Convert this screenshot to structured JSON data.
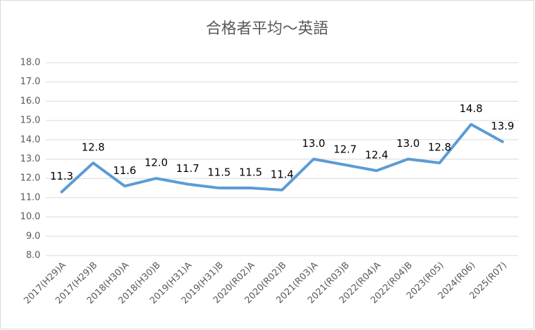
{
  "chart_data": {
    "type": "line",
    "title": "合格者平均～英語",
    "categories": [
      "2017(H29)A",
      "2017(H29)B",
      "2018(H30)A",
      "2018(H30)B",
      "2019(H31)A",
      "2019(H31)B",
      "2020(R02)A",
      "2020(R02)B",
      "2021(R03)A",
      "2021(R03)B",
      "2022(R04)A",
      "2022(R04)B",
      "2023(R05)",
      "2024(R06)",
      "2025(R07)"
    ],
    "values": [
      11.3,
      12.8,
      11.6,
      12.0,
      11.7,
      11.5,
      11.5,
      11.4,
      13.0,
      12.7,
      12.4,
      13.0,
      12.8,
      14.8,
      13.9
    ],
    "value_labels": [
      "11.3",
      "12.8",
      "11.6",
      "12.0",
      "11.7",
      "11.5",
      "11.5",
      "11.4",
      "13.0",
      "12.7",
      "12.4",
      "13.0",
      "12.8",
      "14.8",
      "13.9"
    ],
    "color": "#5b9bd5",
    "ylim": [
      8,
      18
    ],
    "yticks": [
      {
        "value": 8,
        "label": "8.0"
      },
      {
        "value": 9,
        "label": "9.0"
      },
      {
        "value": 10,
        "label": "10.0"
      },
      {
        "value": 11,
        "label": "11.0"
      },
      {
        "value": 12,
        "label": "12.0"
      },
      {
        "value": 13,
        "label": "13.0"
      },
      {
        "value": 14,
        "label": "14.0"
      },
      {
        "value": 15,
        "label": "15.0"
      },
      {
        "value": 16,
        "label": "16.0"
      },
      {
        "value": 17,
        "label": "17.0"
      },
      {
        "value": 18,
        "label": "18.0"
      }
    ],
    "grid": true
  }
}
